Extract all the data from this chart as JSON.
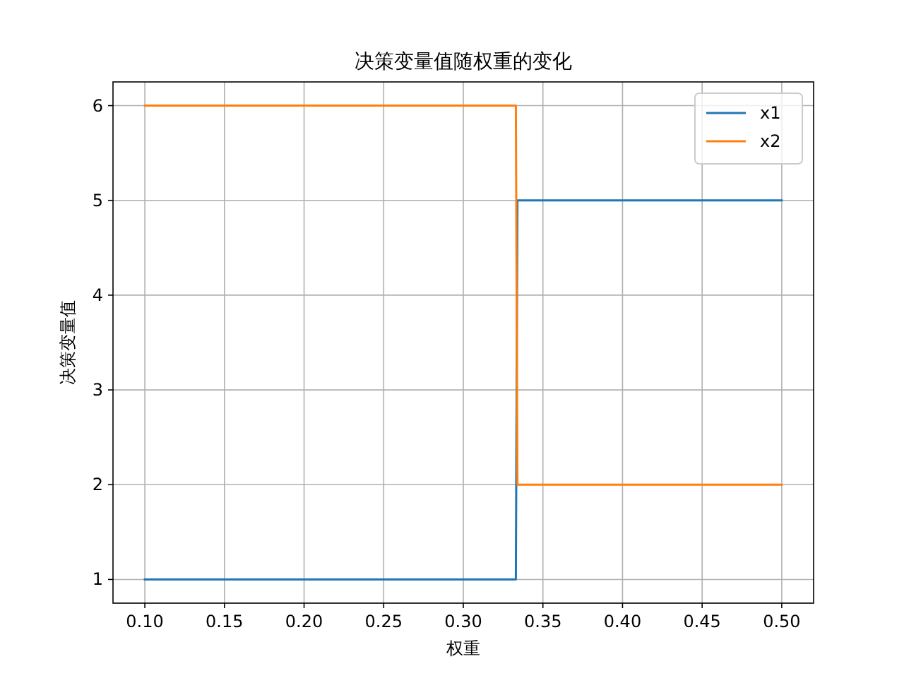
{
  "chart_data": {
    "type": "line",
    "title": "决策变量值随权重的变化",
    "xlabel": "权重",
    "ylabel": "决策变量值",
    "x": [
      0.1,
      0.333,
      0.334,
      0.5
    ],
    "series": [
      {
        "name": "x1",
        "color": "#1f77b4",
        "values": [
          1,
          1,
          5,
          5
        ]
      },
      {
        "name": "x2",
        "color": "#ff7f0e",
        "values": [
          6,
          6,
          2,
          2
        ]
      }
    ],
    "xlim": [
      0.08,
      0.52
    ],
    "ylim": [
      0.75,
      6.25
    ],
    "xticks": [
      {
        "value": 0.1,
        "label": "0.10"
      },
      {
        "value": 0.15,
        "label": "0.15"
      },
      {
        "value": 0.2,
        "label": "0.20"
      },
      {
        "value": 0.25,
        "label": "0.25"
      },
      {
        "value": 0.3,
        "label": "0.30"
      },
      {
        "value": 0.35,
        "label": "0.35"
      },
      {
        "value": 0.4,
        "label": "0.40"
      },
      {
        "value": 0.45,
        "label": "0.45"
      },
      {
        "value": 0.5,
        "label": "0.50"
      }
    ],
    "yticks": [
      1,
      2,
      3,
      4,
      5,
      6
    ],
    "grid": true,
    "legend": "top right"
  }
}
